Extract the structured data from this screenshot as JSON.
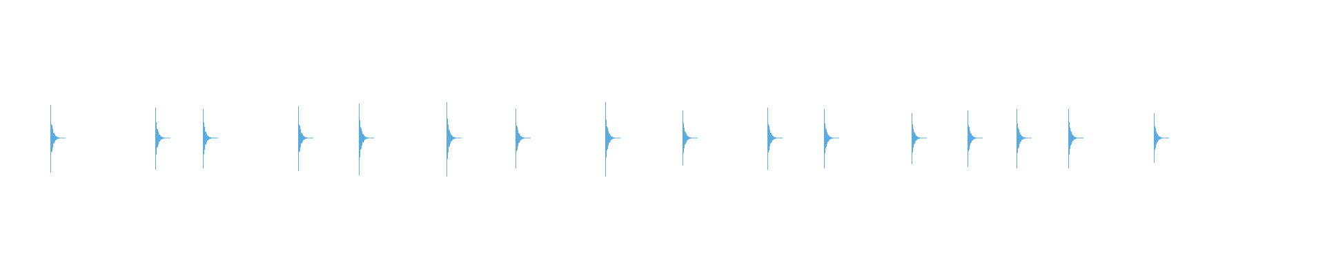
{
  "chart_data": {
    "type": "line",
    "subtype": "audio-waveform",
    "title": "",
    "xlabel": "",
    "ylabel": "",
    "axes_visible": false,
    "grid": false,
    "legend": "none",
    "ylim": [
      -1,
      1
    ],
    "xlim": [
      0,
      1
    ],
    "color": "#5aabe0",
    "background": "#ffffff",
    "transients": [
      {
        "t": 0.038,
        "peak_pos": 0.24,
        "peak_neg": 0.25
      },
      {
        "t": 0.117,
        "peak_pos": 0.22,
        "peak_neg": 0.23
      },
      {
        "t": 0.153,
        "peak_pos": 0.21,
        "peak_neg": 0.22
      },
      {
        "t": 0.225,
        "peak_pos": 0.23,
        "peak_neg": 0.24
      },
      {
        "t": 0.271,
        "peak_pos": 0.25,
        "peak_neg": 0.27
      },
      {
        "t": 0.337,
        "peak_pos": 0.26,
        "peak_neg": 0.28
      },
      {
        "t": 0.389,
        "peak_pos": 0.21,
        "peak_neg": 0.22
      },
      {
        "t": 0.457,
        "peak_pos": 0.26,
        "peak_neg": 0.28
      },
      {
        "t": 0.515,
        "peak_pos": 0.2,
        "peak_neg": 0.2
      },
      {
        "t": 0.579,
        "peak_pos": 0.22,
        "peak_neg": 0.23
      },
      {
        "t": 0.622,
        "peak_pos": 0.21,
        "peak_neg": 0.22
      },
      {
        "t": 0.688,
        "peak_pos": 0.18,
        "peak_neg": 0.19
      },
      {
        "t": 0.73,
        "peak_pos": 0.2,
        "peak_neg": 0.21
      },
      {
        "t": 0.767,
        "peak_pos": 0.21,
        "peak_neg": 0.22
      },
      {
        "t": 0.806,
        "peak_pos": 0.21,
        "peak_neg": 0.22
      },
      {
        "t": 0.871,
        "peak_pos": 0.18,
        "peak_neg": 0.18
      }
    ]
  }
}
